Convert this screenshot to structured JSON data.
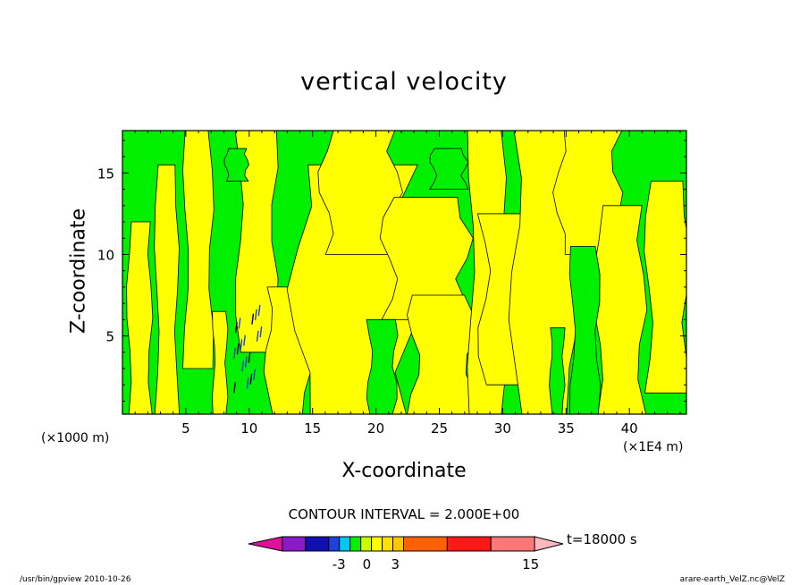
{
  "chart_data": {
    "type": "heatmap",
    "title": "vertical velocity",
    "xlabel": "X-coordinate",
    "ylabel": "Z-coordinate",
    "x_unit_left": "(×1000 m)",
    "x_unit_right": "(×1E4 m)",
    "xlim": [
      0,
      44.5
    ],
    "ylim": [
      0.2,
      17.6
    ],
    "x_ticks": [
      5,
      10,
      15,
      20,
      25,
      30,
      35,
      40
    ],
    "y_ticks": [
      5,
      10,
      15
    ],
    "x_tick_labels": [
      "5",
      "10",
      "15",
      "20",
      "25",
      "30",
      "35",
      "40"
    ],
    "y_tick_labels": [
      "5",
      "10",
      "15"
    ],
    "contour_interval": "CONTOUR INTERVAL = 2.000E+00",
    "time": "t=18000 s",
    "colorbar": {
      "levels": [
        -3,
        -1,
        1,
        3,
        15
      ],
      "tick_labels": [
        "-3",
        "0",
        "3",
        "15"
      ],
      "colors": [
        "#e0109a",
        "#8a1ac8",
        "#1010b0",
        "#2040e0",
        "#00c8ff",
        "#00f000",
        "#c8ff00",
        "#ffff00",
        "#ffe000",
        "#ffc800",
        "#ff6000",
        "#ff1818",
        "#ff7878",
        "#ffb8c0"
      ]
    },
    "regions": {
      "background_color": "#00f000",
      "positive_color": "#ffff00",
      "strong_negative_color": "#2040e0",
      "yellow_bands": [
        {
          "x": [
            0.5,
            2.2
          ],
          "z": [
            0.2,
            12.0
          ]
        },
        {
          "x": [
            2.7,
            4.3
          ],
          "z": [
            0.2,
            15.5
          ]
        },
        {
          "x": [
            5.0,
            7.0
          ],
          "z": [
            3.0,
            17.6
          ]
        },
        {
          "x": [
            7.2,
            8.2
          ],
          "z": [
            0.2,
            6.5
          ]
        },
        {
          "x": [
            9.2,
            12.0
          ],
          "z": [
            4.0,
            17.6
          ]
        },
        {
          "x": [
            11.5,
            14.5
          ],
          "z": [
            0.2,
            8.0
          ]
        },
        {
          "x": [
            14.0,
            22.5
          ],
          "z": [
            0.2,
            15.5
          ]
        },
        {
          "x": [
            16.0,
            21.5
          ],
          "z": [
            10.0,
            17.6
          ]
        },
        {
          "x": [
            21.0,
            27.0
          ],
          "z": [
            6.0,
            13.5
          ]
        },
        {
          "x": [
            23.0,
            27.5
          ],
          "z": [
            0.2,
            7.5
          ]
        },
        {
          "x": [
            27.5,
            30.0
          ],
          "z": [
            0.2,
            17.6
          ]
        },
        {
          "x": [
            28.5,
            33.0
          ],
          "z": [
            2.0,
            12.5
          ]
        },
        {
          "x": [
            31.0,
            35.5
          ],
          "z": [
            0.2,
            17.6
          ]
        },
        {
          "x": [
            34.5,
            39.0
          ],
          "z": [
            10.0,
            17.6
          ]
        },
        {
          "x": [
            37.5,
            41.0
          ],
          "z": [
            0.2,
            13.0
          ]
        },
        {
          "x": [
            41.5,
            44.5
          ],
          "z": [
            1.5,
            14.5
          ]
        }
      ],
      "green_spots": [
        {
          "x": [
            8.2,
            9.8
          ],
          "z": [
            14.5,
            16.5
          ]
        },
        {
          "x": [
            24.5,
            27.0
          ],
          "z": [
            14.0,
            16.5
          ]
        },
        {
          "x": [
            35.5,
            37.5
          ],
          "z": [
            0.2,
            10.5
          ]
        },
        {
          "x": [
            19.5,
            21.5
          ],
          "z": [
            0.2,
            6.0
          ]
        },
        {
          "x": [
            33.8,
            34.8
          ],
          "z": [
            0.2,
            5.5
          ]
        }
      ],
      "blue_region": {
        "x": [
          8.8,
          11.0
        ],
        "z": [
          1.5,
          6.5
        ]
      }
    }
  },
  "footer": {
    "left": "/usr/bin/gpview   2010-10-26",
    "right": "arare-earth_VelZ.nc@VelZ"
  }
}
